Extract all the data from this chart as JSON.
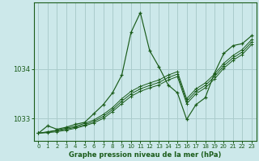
{
  "xlabel": "Graphe pression niveau de la mer (hPa)",
  "bg_color": "#cce8ea",
  "grid_color": "#aacccc",
  "line_color": "#1a5c1a",
  "xlim": [
    -0.5,
    23.5
  ],
  "ylim": [
    1032.55,
    1035.35
  ],
  "yticks": [
    1033,
    1034
  ],
  "xticks": [
    0,
    1,
    2,
    3,
    4,
    5,
    6,
    7,
    8,
    9,
    10,
    11,
    12,
    13,
    14,
    15,
    16,
    17,
    18,
    19,
    20,
    21,
    22,
    23
  ],
  "series": [
    [
      1032.7,
      1032.85,
      1032.78,
      1032.82,
      1032.88,
      1032.92,
      1033.1,
      1033.28,
      1033.52,
      1033.88,
      1034.75,
      1035.15,
      1034.38,
      1034.05,
      1033.68,
      1033.52,
      1032.98,
      1033.28,
      1033.42,
      1033.92,
      1034.32,
      1034.48,
      1034.52,
      1034.68
    ],
    [
      1032.7,
      1032.73,
      1032.76,
      1032.8,
      1032.84,
      1032.9,
      1032.97,
      1033.08,
      1033.22,
      1033.4,
      1033.55,
      1033.65,
      1033.72,
      1033.78,
      1033.88,
      1033.95,
      1033.4,
      1033.6,
      1033.72,
      1033.9,
      1034.12,
      1034.28,
      1034.4,
      1034.6
    ],
    [
      1032.7,
      1032.72,
      1032.75,
      1032.78,
      1032.82,
      1032.87,
      1032.94,
      1033.04,
      1033.18,
      1033.35,
      1033.5,
      1033.6,
      1033.67,
      1033.73,
      1033.83,
      1033.9,
      1033.35,
      1033.55,
      1033.67,
      1033.85,
      1034.07,
      1034.23,
      1034.35,
      1034.55
    ],
    [
      1032.7,
      1032.71,
      1032.73,
      1032.76,
      1032.8,
      1032.85,
      1032.91,
      1033.0,
      1033.14,
      1033.3,
      1033.45,
      1033.55,
      1033.62,
      1033.68,
      1033.78,
      1033.85,
      1033.3,
      1033.5,
      1033.62,
      1033.8,
      1034.02,
      1034.18,
      1034.3,
      1034.5
    ]
  ]
}
